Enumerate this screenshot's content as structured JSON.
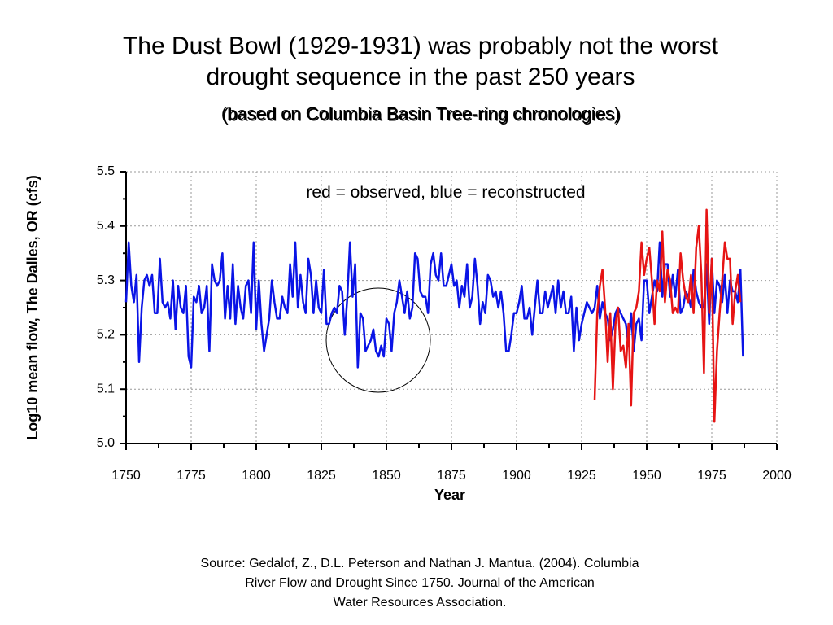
{
  "chart_data": {
    "type": "line",
    "title": [
      "The Dust Bowl  (1929-1931) was probably not the worst",
      "drought sequence in the past 250 years"
    ],
    "subtitle": "(based on Columbia Basin Tree-ring chronologies)",
    "xlabel": "Year",
    "ylabel": "Log10 mean flow, The Dalles, OR (cfs)",
    "annotation": "red = observed, blue = reconstructed",
    "source": [
      "Source:  Gedalof, Z., D.L. Peterson and Nathan J. Mantua.  (2004).  Columbia",
      "River Flow and Drought Since 1750.  Journal of the American",
      "Water Resources Association."
    ],
    "xlim": [
      1750,
      2000
    ],
    "xticks": [
      1750,
      1775,
      1800,
      1825,
      1850,
      1875,
      1900,
      1925,
      1950,
      1975,
      2000
    ],
    "ylim": [
      5.0,
      5.5
    ],
    "yticks": [
      {
        "value": 5.0,
        "label": "5.0"
      },
      5.1,
      5.2,
      5.3,
      5.4,
      5.5
    ],
    "grid": true,
    "x": [
      1750,
      1751,
      1752,
      1753,
      1754,
      1755,
      1756,
      1757,
      1758,
      1759,
      1760,
      1761,
      1762,
      1763,
      1764,
      1765,
      1766,
      1767,
      1768,
      1769,
      1770,
      1771,
      1772,
      1773,
      1774,
      1775,
      1776,
      1777,
      1778,
      1779,
      1780,
      1781,
      1782,
      1783,
      1784,
      1785,
      1786,
      1787,
      1788,
      1789,
      1790,
      1791,
      1792,
      1793,
      1794,
      1795,
      1796,
      1797,
      1798,
      1799,
      1800,
      1801,
      1802,
      1803,
      1804,
      1805,
      1806,
      1807,
      1808,
      1809,
      1810,
      1811,
      1812,
      1813,
      1814,
      1815,
      1816,
      1817,
      1818,
      1819,
      1820,
      1821,
      1822,
      1823,
      1824,
      1825,
      1826,
      1827,
      1828,
      1829,
      1830,
      1831,
      1832,
      1833,
      1834,
      1835,
      1836,
      1837,
      1838,
      1839,
      1840,
      1841,
      1842,
      1843,
      1844,
      1845,
      1846,
      1847,
      1848,
      1849,
      1850,
      1851,
      1852,
      1853,
      1854,
      1855,
      1856,
      1857,
      1858,
      1859,
      1860,
      1861,
      1862,
      1863,
      1864,
      1865,
      1866,
      1867,
      1868,
      1869,
      1870,
      1871,
      1872,
      1873,
      1874,
      1875,
      1876,
      1877,
      1878,
      1879,
      1880,
      1881,
      1882,
      1883,
      1884,
      1885,
      1886,
      1887,
      1888,
      1889,
      1890,
      1891,
      1892,
      1893,
      1894,
      1895,
      1896,
      1897,
      1898,
      1899,
      1900,
      1901,
      1902,
      1903,
      1904,
      1905,
      1906,
      1907,
      1908,
      1909,
      1910,
      1911,
      1912,
      1913,
      1914,
      1915,
      1916,
      1917,
      1918,
      1919,
      1920,
      1921,
      1922,
      1923,
      1924,
      1925,
      1926,
      1927,
      1928,
      1929,
      1930,
      1931,
      1932,
      1933,
      1934,
      1935,
      1936,
      1937,
      1938,
      1939,
      1940,
      1941,
      1942,
      1943,
      1944,
      1945,
      1946,
      1947,
      1948,
      1949,
      1950,
      1951,
      1952,
      1953,
      1954,
      1955,
      1956,
      1957,
      1958,
      1959,
      1960,
      1961,
      1962,
      1963,
      1964,
      1965,
      1966,
      1967,
      1968,
      1969,
      1970,
      1971,
      1972,
      1973,
      1974,
      1975,
      1976,
      1977,
      1978,
      1979,
      1980,
      1981,
      1982,
      1983,
      1984,
      1985,
      1986,
      1987
    ],
    "series": [
      {
        "color": "#0a14e6",
        "values": [
          5.26,
          5.37,
          5.29,
          5.26,
          5.31,
          5.15,
          5.25,
          5.3,
          5.31,
          5.29,
          5.31,
          5.24,
          5.24,
          5.34,
          5.26,
          5.25,
          5.26,
          5.23,
          5.3,
          5.21,
          5.29,
          5.25,
          5.24,
          5.29,
          5.16,
          5.14,
          5.27,
          5.26,
          5.29,
          5.24,
          5.25,
          5.29,
          5.17,
          5.33,
          5.3,
          5.29,
          5.3,
          5.35,
          5.23,
          5.29,
          5.23,
          5.33,
          5.22,
          5.29,
          5.25,
          5.23,
          5.29,
          5.3,
          5.24,
          5.37,
          5.21,
          5.3,
          5.22,
          5.17,
          5.2,
          5.23,
          5.3,
          5.26,
          5.23,
          5.23,
          5.27,
          5.25,
          5.24,
          5.33,
          5.27,
          5.37,
          5.25,
          5.31,
          5.26,
          5.24,
          5.34,
          5.31,
          5.24,
          5.3,
          5.25,
          5.24,
          5.32,
          5.22,
          5.22,
          5.24,
          5.25,
          5.24,
          5.29,
          5.28,
          5.2,
          5.27,
          5.37,
          5.27,
          5.33,
          5.14,
          5.24,
          5.23,
          5.17,
          5.18,
          5.19,
          5.21,
          5.17,
          5.16,
          5.18,
          5.16,
          5.23,
          5.22,
          5.17,
          5.24,
          5.26,
          5.3,
          5.27,
          5.24,
          5.28,
          5.23,
          5.25,
          5.35,
          5.34,
          5.28,
          5.27,
          5.27,
          5.24,
          5.33,
          5.35,
          5.31,
          5.3,
          5.35,
          5.29,
          5.29,
          5.31,
          5.33,
          5.29,
          5.3,
          5.25,
          5.29,
          5.27,
          5.33,
          5.25,
          5.27,
          5.34,
          5.29,
          5.22,
          5.26,
          5.24,
          5.31,
          5.3,
          5.27,
          5.28,
          5.25,
          5.28,
          5.24,
          5.17,
          5.17,
          5.2,
          5.24,
          5.24,
          5.26,
          5.29,
          5.23,
          5.23,
          5.25,
          5.2,
          5.25,
          5.3,
          5.24,
          5.24,
          5.28,
          5.25,
          5.27,
          5.29,
          5.24,
          5.3,
          5.25,
          5.28,
          5.24,
          5.24,
          5.27,
          5.17,
          5.25,
          5.19,
          5.22,
          5.24,
          5.26,
          5.25,
          5.24,
          5.25,
          5.29,
          5.23,
          5.26,
          5.24,
          5.23,
          5.19,
          5.21,
          5.24,
          5.25,
          5.24,
          5.23,
          5.22,
          5.18,
          5.24,
          5.17,
          5.22,
          5.23,
          5.19,
          5.3,
          5.3,
          5.24,
          5.27,
          5.3,
          5.28,
          5.37,
          5.27,
          5.33,
          5.33,
          5.27,
          5.31,
          5.27,
          5.32,
          5.24,
          5.25,
          5.28,
          5.27,
          5.25,
          5.32,
          5.28,
          5.26,
          5.25,
          5.25,
          5.33,
          5.22,
          5.34,
          5.24,
          5.3,
          5.29,
          5.26,
          5.31,
          5.24,
          5.3,
          5.28,
          5.28,
          5.26,
          5.32,
          5.16
        ]
      },
      {
        "color": "#e61414",
        "values": [
          null,
          null,
          null,
          null,
          null,
          null,
          null,
          null,
          null,
          null,
          null,
          null,
          null,
          null,
          null,
          null,
          null,
          null,
          null,
          null,
          null,
          null,
          null,
          null,
          null,
          null,
          null,
          null,
          null,
          null,
          null,
          null,
          null,
          null,
          null,
          null,
          null,
          null,
          null,
          null,
          null,
          null,
          null,
          null,
          null,
          null,
          null,
          null,
          null,
          null,
          null,
          null,
          null,
          null,
          null,
          null,
          null,
          null,
          null,
          null,
          null,
          null,
          null,
          null,
          null,
          null,
          null,
          null,
          null,
          null,
          null,
          null,
          null,
          null,
          null,
          null,
          null,
          null,
          null,
          null,
          null,
          null,
          null,
          null,
          null,
          null,
          null,
          null,
          null,
          null,
          null,
          null,
          null,
          null,
          null,
          null,
          null,
          null,
          null,
          null,
          null,
          null,
          null,
          null,
          null,
          null,
          null,
          null,
          null,
          null,
          null,
          null,
          null,
          null,
          null,
          null,
          null,
          null,
          null,
          null,
          null,
          null,
          null,
          null,
          null,
          null,
          null,
          null,
          null,
          null,
          null,
          null,
          null,
          null,
          null,
          null,
          null,
          null,
          null,
          null,
          null,
          null,
          null,
          null,
          null,
          null,
          null,
          null,
          null,
          null,
          null,
          null,
          null,
          null,
          null,
          null,
          null,
          null,
          null,
          null,
          null,
          null,
          null,
          null,
          null,
          null,
          null,
          null,
          null,
          null,
          null,
          null,
          null,
          null,
          null,
          null,
          null,
          null,
          null,
          null,
          5.08,
          5.24,
          5.29,
          5.32,
          5.25,
          5.15,
          5.24,
          5.1,
          5.22,
          5.25,
          5.17,
          5.18,
          5.14,
          5.22,
          5.07,
          5.24,
          5.25,
          5.28,
          5.37,
          5.31,
          5.34,
          5.36,
          5.3,
          5.22,
          5.3,
          5.28,
          5.39,
          5.26,
          5.32,
          5.3,
          5.24,
          5.25,
          5.24,
          5.35,
          5.3,
          5.27,
          5.26,
          5.31,
          5.24,
          5.36,
          5.4,
          5.31,
          5.13,
          5.43,
          5.24,
          5.34,
          5.04,
          5.17,
          5.24,
          5.3,
          5.37,
          5.34,
          5.34,
          5.22,
          5.28,
          5.31,
          5.26,
          null
        ]
      }
    ]
  }
}
